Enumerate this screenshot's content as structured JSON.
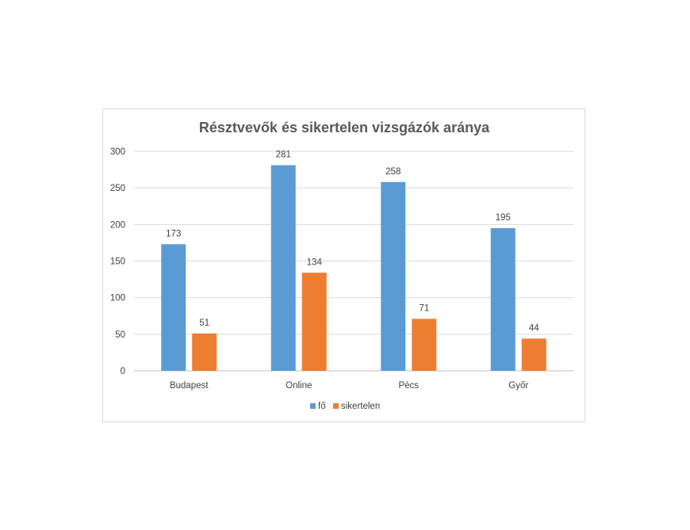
{
  "chart_data": {
    "type": "bar",
    "title": "Résztvevők és sikertelen vizsgázók aránya",
    "categories": [
      "Budapest",
      "Online",
      "Pécs",
      "Győr"
    ],
    "series": [
      {
        "name": "fő",
        "color": "#5b9bd5",
        "values": [
          173,
          281,
          258,
          195
        ]
      },
      {
        "name": "sikertelen",
        "color": "#ed7d31",
        "values": [
          51,
          134,
          71,
          44
        ]
      }
    ],
    "yticks": [
      "0",
      "50",
      "100",
      "150",
      "200",
      "250",
      "300"
    ],
    "ylim": [
      0,
      300
    ],
    "grid": true,
    "legend": "bottom"
  }
}
